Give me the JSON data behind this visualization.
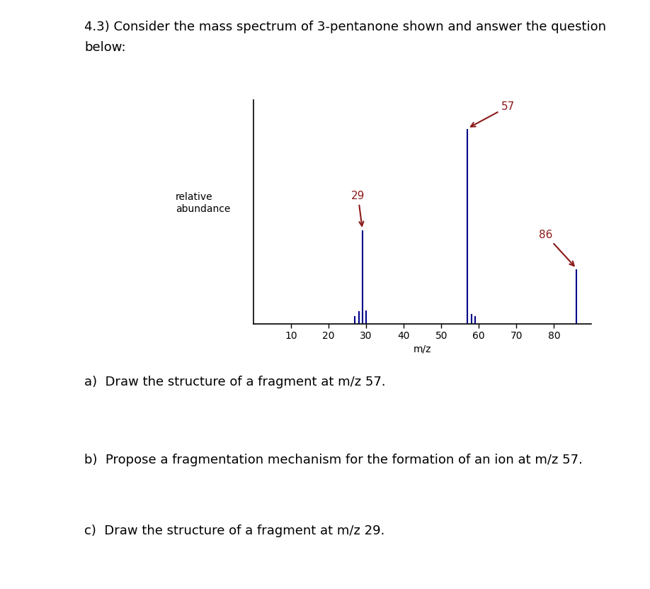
{
  "title_line1": "4.3) Consider the mass spectrum of 3-pentanone shown and answer the question",
  "title_line2": "below:",
  "ylabel": "relative\nabundance",
  "xlabel": "m/z",
  "xlim": [
    0,
    90
  ],
  "ylim": [
    0,
    1.15
  ],
  "xticks": [
    10,
    20,
    30,
    40,
    50,
    60,
    70,
    80
  ],
  "bar_color": "#00008B",
  "peaks": [
    {
      "mz": 27,
      "rel": 0.04
    },
    {
      "mz": 28,
      "rel": 0.065
    },
    {
      "mz": 29,
      "rel": 0.48
    },
    {
      "mz": 30,
      "rel": 0.07
    },
    {
      "mz": 57,
      "rel": 1.0
    },
    {
      "mz": 58,
      "rel": 0.05
    },
    {
      "mz": 59,
      "rel": 0.04
    },
    {
      "mz": 86,
      "rel": 0.28
    }
  ],
  "annotation_color": "#8B1A1A",
  "annot_fontsize": 11,
  "questions": [
    "a)  Draw the structure of a fragment at m/z 57.",
    "b)  Propose a fragmentation mechanism for the formation of an ion at m/z 57.",
    "c)  Draw the structure of a fragment at m/z 29."
  ],
  "bg_color": "#ffffff",
  "font_size_title": 13,
  "font_size_label": 10,
  "font_size_question": 13
}
